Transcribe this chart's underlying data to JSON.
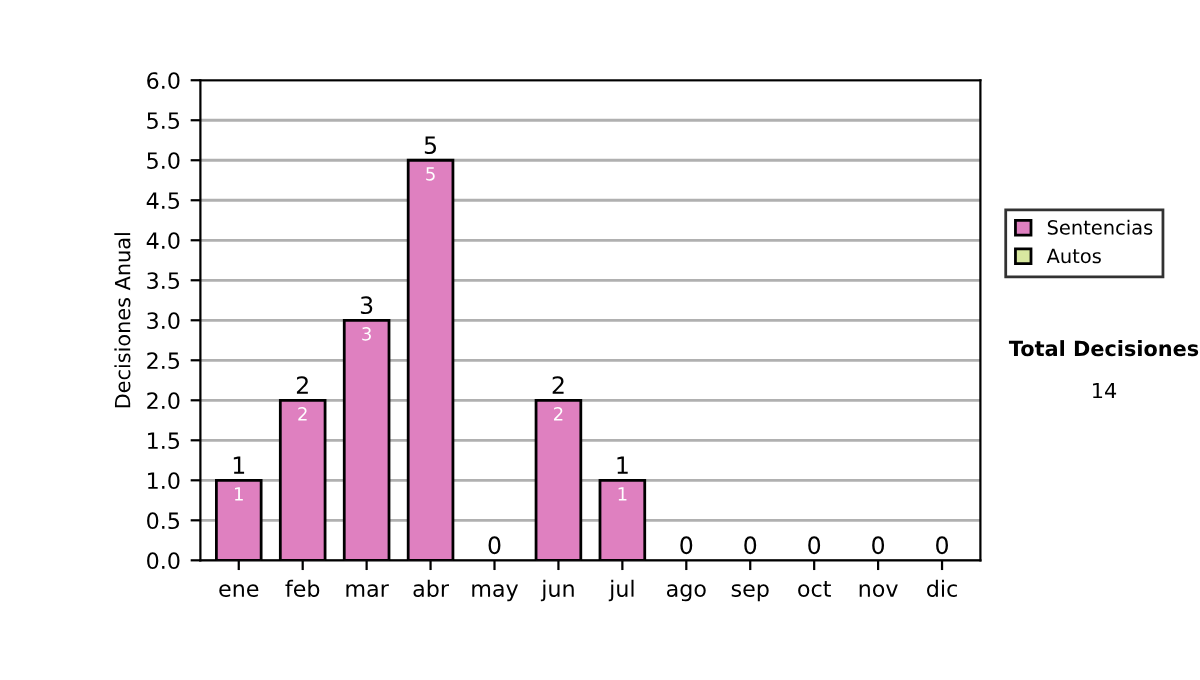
{
  "chart_data": {
    "type": "bar",
    "stacked": true,
    "ylabel": "Decisiones Anual",
    "categories": [
      "ene",
      "feb",
      "mar",
      "abr",
      "may",
      "jun",
      "jul",
      "ago",
      "sep",
      "oct",
      "nov",
      "dic"
    ],
    "series": [
      {
        "name": "Sentencias",
        "color": "#df80c0",
        "values": [
          1,
          2,
          3,
          5,
          0,
          2,
          1,
          0,
          0,
          0,
          0,
          0
        ],
        "value_labels": [
          "1",
          "2",
          "3",
          "5",
          null,
          "2",
          "1",
          null,
          null,
          null,
          null,
          null
        ]
      },
      {
        "name": "Autos",
        "color": "#d8e8a0",
        "values": [
          0,
          0,
          0,
          0,
          0,
          0,
          0,
          0,
          0,
          0,
          0,
          0
        ]
      }
    ],
    "totals": [
      "1",
      "2",
      "3",
      "5",
      "0",
      "2",
      "1",
      "0",
      "0",
      "0",
      "0",
      "0"
    ],
    "ylim": [
      0,
      6
    ],
    "yticks": [
      "0.0",
      "0.5",
      "1.0",
      "1.5",
      "2.0",
      "2.5",
      "3.0",
      "3.5",
      "4.0",
      "4.5",
      "5.0",
      "5.5",
      "6.0"
    ],
    "grid": "y",
    "legend": "right",
    "annotations": [
      "Total Decisiones",
      "14"
    ]
  }
}
